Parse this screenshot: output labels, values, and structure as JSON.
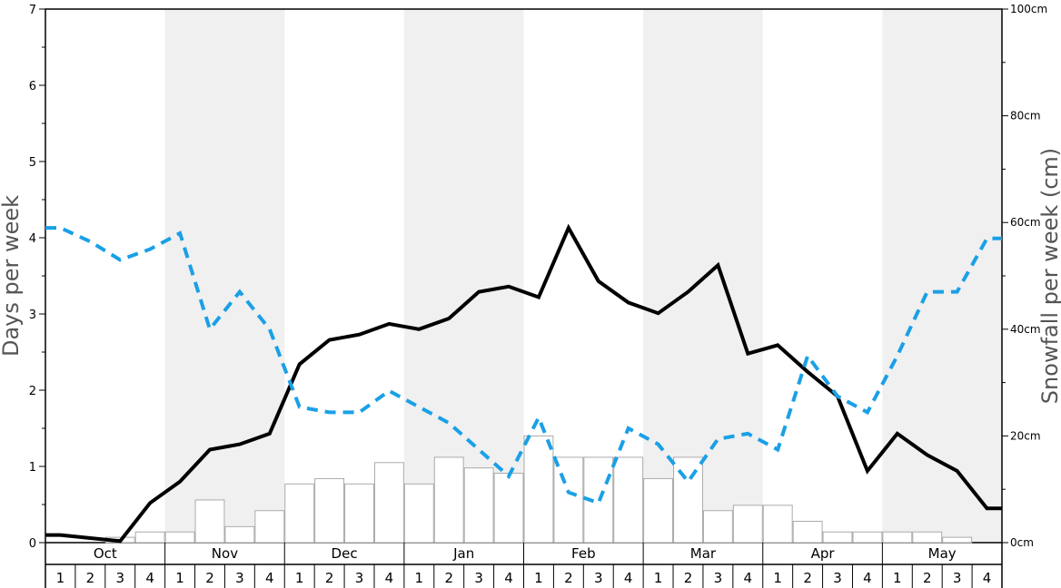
{
  "chart_data": {
    "type": "bar+line",
    "months": [
      "Oct",
      "Nov",
      "Dec",
      "Jan",
      "Feb",
      "Mar",
      "Apr",
      "May"
    ],
    "week_labels": [
      "1",
      "2",
      "3",
      "4"
    ],
    "y_left": {
      "label": "Days per week",
      "range": [
        0,
        7
      ],
      "ticks": [
        "0",
        "1",
        "2",
        "3",
        "4",
        "5",
        "6",
        "7"
      ]
    },
    "y_right": {
      "label": "Snowfall per week (cm)",
      "range": [
        0,
        100
      ],
      "ticks": [
        "0cm",
        "20cm",
        "40cm",
        "60cm",
        "80cm",
        "100cm"
      ]
    },
    "shaded_months": [
      "Nov",
      "Jan",
      "Mar",
      "May"
    ],
    "series": [
      {
        "kind": "bar",
        "axis": "right",
        "values": [
          0,
          0,
          1,
          2,
          2,
          8,
          3,
          6,
          11,
          12,
          11,
          15,
          11,
          16,
          14,
          13,
          20,
          16,
          16,
          16,
          12,
          16,
          6,
          7,
          7,
          4,
          2,
          2,
          2,
          2,
          1,
          0
        ],
        "color": "#ffffff"
      },
      {
        "kind": "line",
        "axis": "left",
        "style": "solid",
        "color": "#000000",
        "values": [
          0.1,
          0.06,
          0.02,
          0.52,
          0.8,
          1.22,
          1.29,
          1.43,
          2.34,
          2.66,
          2.73,
          2.87,
          2.8,
          2.94,
          3.29,
          3.36,
          3.22,
          4.13,
          3.43,
          3.15,
          3.01,
          3.29,
          3.64,
          2.48,
          2.59,
          2.24,
          1.92,
          0.94,
          1.43,
          1.15,
          0.94,
          0.45
        ]
      },
      {
        "kind": "line",
        "axis": "left",
        "style": "dashed",
        "color": "#1aa0e6",
        "values": [
          4.13,
          3.95,
          3.71,
          3.85,
          4.06,
          2.8,
          3.29,
          2.8,
          1.78,
          1.71,
          1.71,
          1.99,
          1.78,
          1.57,
          1.22,
          0.87,
          1.64,
          0.66,
          0.52,
          1.5,
          1.29,
          0.8,
          1.36,
          1.43,
          1.22,
          2.45,
          1.92,
          1.71,
          2.45,
          3.29,
          3.29,
          3.99
        ]
      }
    ]
  }
}
